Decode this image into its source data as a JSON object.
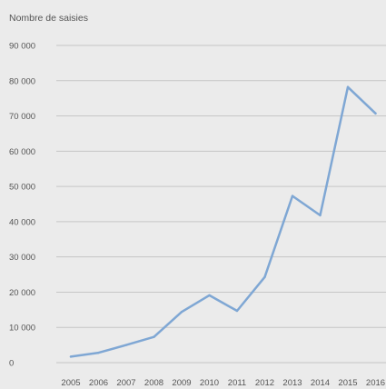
{
  "chart_data": {
    "type": "line",
    "title": "",
    "xlabel": "",
    "ylabel": "Nombre de saisies",
    "categories": [
      "2005",
      "2006",
      "2007",
      "2008",
      "2009",
      "2010",
      "2011",
      "2012",
      "2013",
      "2014",
      "2015",
      "2016"
    ],
    "series": [
      {
        "values": [
          1700,
          2800,
          5000,
          7300,
          14400,
          19100,
          14700,
          24300,
          47300,
          41800,
          78200,
          70700
        ]
      }
    ],
    "ylim": [
      0,
      90000
    ],
    "yticks": [
      0,
      10000,
      20000,
      30000,
      40000,
      50000,
      60000,
      70000,
      80000,
      90000
    ],
    "ytick_labels": [
      "0",
      "10 000",
      "20 000",
      "30 000",
      "40 000",
      "50 000",
      "60 000",
      "70 000",
      "80 000",
      "90 000"
    ],
    "grid": "horizontal",
    "legend": "none",
    "colors": {
      "line": "#7fa7d4",
      "grid": "#c6c6c6",
      "background": "#ebebeb",
      "text": "#555555"
    }
  }
}
